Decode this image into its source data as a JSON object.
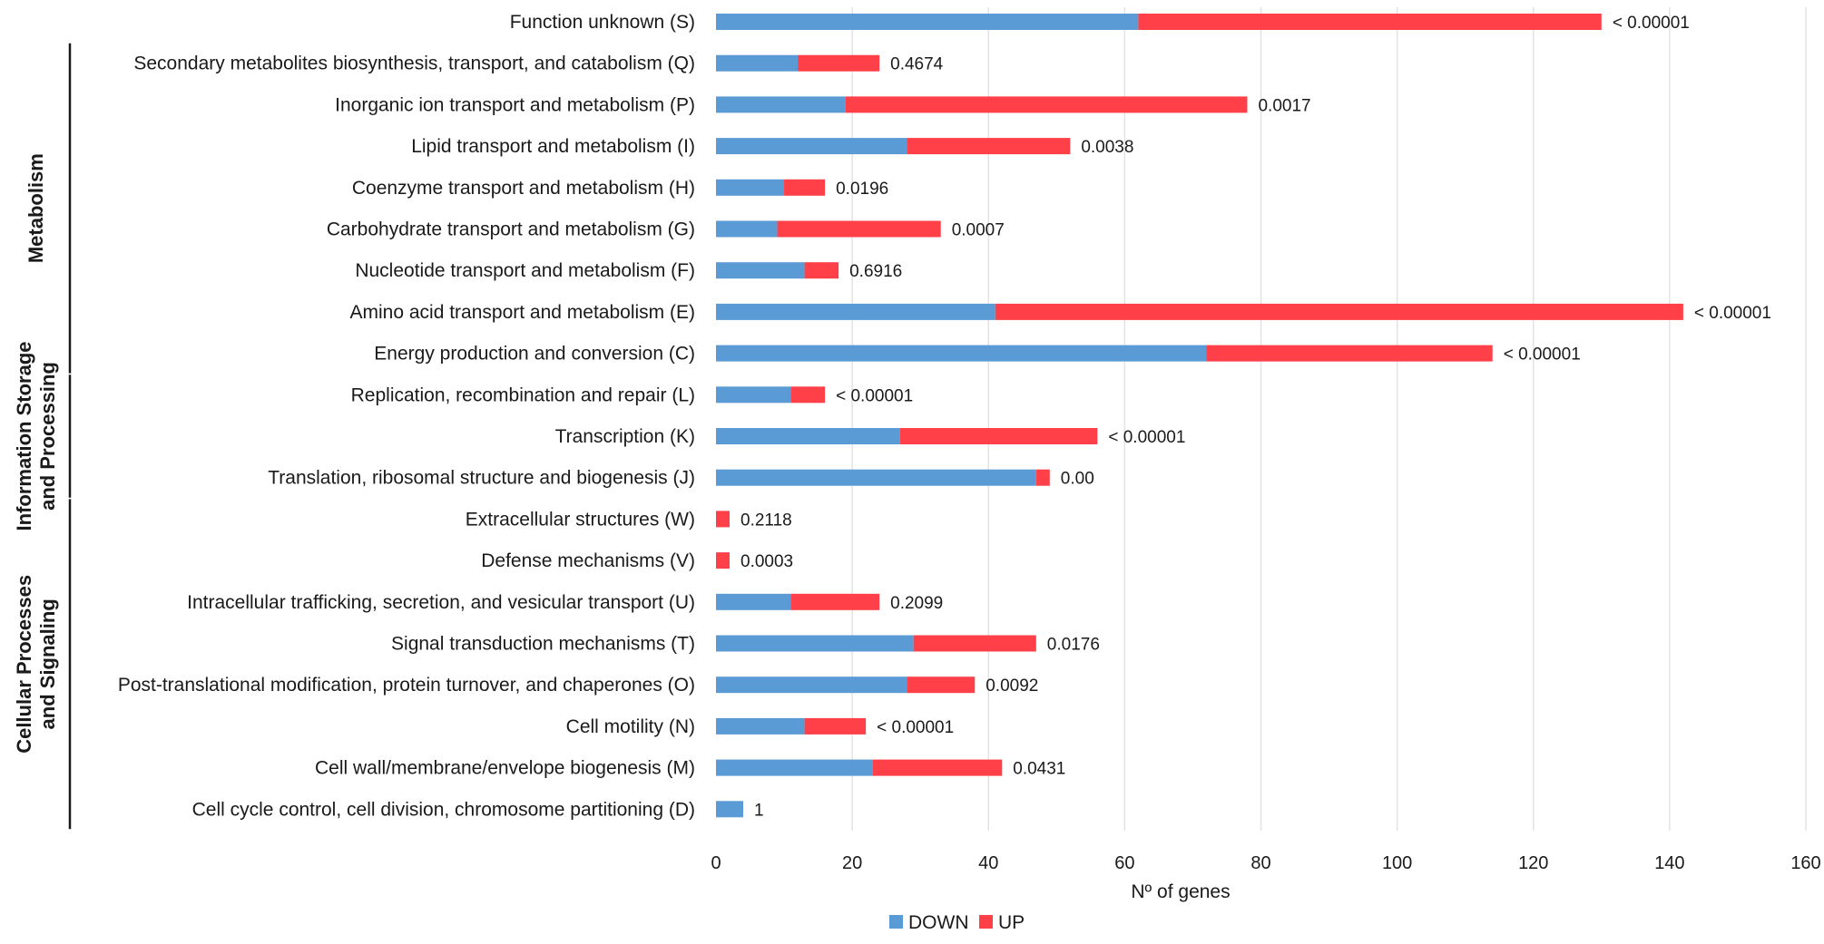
{
  "chart_data": {
    "type": "bar",
    "orientation": "horizontal",
    "stacked": true,
    "title": "",
    "xlabel": "Nº of genes",
    "ylabel": "",
    "xlim": [
      0,
      160
    ],
    "xticks": [
      "0",
      "20",
      "40",
      "60",
      "80",
      "100",
      "120",
      "140",
      "160"
    ],
    "grid": "vertical",
    "legend_position": "bottom-center",
    "categories": [
      "Function unknown (S)",
      "Secondary metabolites biosynthesis, transport, and catabolism (Q)",
      "Inorganic ion transport and metabolism (P)",
      "Lipid transport and metabolism (I)",
      "Coenzyme transport and metabolism (H)",
      "Carbohydrate transport and metabolism (G)",
      "Nucleotide transport and metabolism (F)",
      "Amino acid transport and metabolism (E)",
      "Energy production and conversion (C)",
      "Replication, recombination and repair (L)",
      "Transcription (K)",
      "Translation, ribosomal structure and biogenesis (J)",
      "Extracellular structures (W)",
      "Defense mechanisms (V)",
      "Intracellular trafficking, secretion, and vesicular transport (U)",
      "Signal transduction mechanisms (T)",
      "Post-translational modification, protein turnover, and chaperones (O)",
      "Cell motility (N)",
      "Cell wall/membrane/envelope biogenesis (M)",
      "Cell cycle control, cell division, chromosome partitioning (D)"
    ],
    "series": [
      {
        "name": "DOWN",
        "color": "#5b9bd5",
        "values": [
          62,
          12,
          19,
          28,
          10,
          9,
          13,
          41,
          72,
          11,
          27,
          47,
          0,
          0,
          11,
          29,
          28,
          13,
          23,
          4
        ]
      },
      {
        "name": "UP",
        "color": "#ff4048",
        "values": [
          68,
          12,
          59,
          24,
          6,
          24,
          5,
          101,
          42,
          5,
          29,
          2,
          2,
          2,
          13,
          18,
          10,
          9,
          19,
          0
        ]
      }
    ],
    "annotations": [
      "< 0.00001",
      "0.4674",
      "0.0017",
      "0.0038",
      "0.0196",
      "0.0007",
      "0.6916",
      "< 0.00001",
      "< 0.00001",
      "< 0.00001",
      "< 0.00001",
      "0.00",
      "0.2118",
      "0.0003",
      "0.2099",
      "0.0176",
      "0.0092",
      "< 0.00001",
      "0.0431",
      "1"
    ],
    "groups": [
      {
        "name": "Metabolism",
        "lines": [
          "Metabolism"
        ],
        "from": 1,
        "to": 8
      },
      {
        "name": "Information Storage and Processing",
        "lines": [
          "Information Storage",
          "and Processing"
        ],
        "from": 9,
        "to": 11
      },
      {
        "name": "Cellular Processes and Signaling",
        "lines": [
          "Cellular Processes",
          "and Signaling"
        ],
        "from": 12,
        "to": 19
      }
    ]
  }
}
